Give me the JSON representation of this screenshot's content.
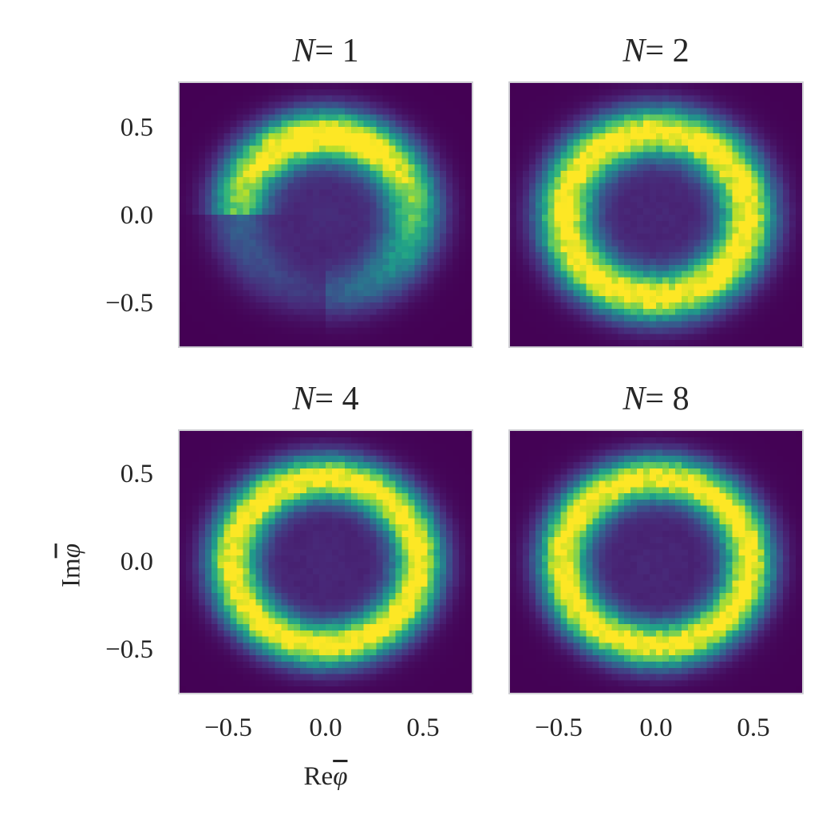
{
  "chart_data": [
    {
      "type": "heatmap",
      "title": "N = 1",
      "title_var": "N",
      "title_val": "1",
      "xlabel": "",
      "ylabel": "",
      "xlim": [
        -0.75,
        0.75
      ],
      "ylim": [
        -0.75,
        0.75
      ],
      "xticks": [
        "−0.5",
        "0.0",
        "0.5"
      ],
      "yticks": [
        "0.5",
        "0.0",
        "−0.5"
      ],
      "colormap": "viridis",
      "shape": "arc (crescent) of radius ~0.45 centered at origin, brightest at top (~0.45 Im), fading toward lower-left; gap in lower-left quadrant",
      "ring_radius": 0.45,
      "ring_width": 0.1,
      "arc_start_deg": -100,
      "arc_end_deg": 200,
      "peak_angle_deg": 90
    },
    {
      "type": "heatmap",
      "title": "N = 2",
      "title_var": "N",
      "title_val": "2",
      "xlim": [
        -0.75,
        0.75
      ],
      "ylim": [
        -0.75,
        0.75
      ],
      "colormap": "viridis",
      "shape": "full ring, radius ~0.47",
      "ring_radius": 0.47,
      "ring_width": 0.1
    },
    {
      "type": "heatmap",
      "title": "N = 4",
      "title_var": "N",
      "title_val": "4",
      "xlim": [
        -0.75,
        0.75
      ],
      "ylim": [
        -0.75,
        0.75
      ],
      "xticks": [
        "−0.5",
        "0.0",
        "0.5"
      ],
      "yticks": [
        "0.5",
        "0.0",
        "−0.5"
      ],
      "xlabel": "Reφ̄",
      "ylabel": "Imφ̄",
      "colormap": "viridis",
      "shape": "full ring, radius ~0.48",
      "ring_radius": 0.48,
      "ring_width": 0.09
    },
    {
      "type": "heatmap",
      "title": "N = 8",
      "title_var": "N",
      "title_val": "8",
      "xlim": [
        -0.75,
        0.75
      ],
      "ylim": [
        -0.75,
        0.75
      ],
      "xticks": [
        "−0.5",
        "0.0",
        "0.5"
      ],
      "colormap": "viridis",
      "shape": "full ring, radius ~0.48",
      "ring_radius": 0.48,
      "ring_width": 0.09
    }
  ],
  "labels": {
    "titles": [
      "N",
      "N",
      "N",
      "N"
    ],
    "title_vals": [
      "= 1",
      "= 2",
      "= 4",
      "= 8"
    ],
    "yticks": [
      "0.5",
      "0.0",
      "−0.5"
    ],
    "xticks": [
      "−0.5",
      "0.0",
      "0.5"
    ],
    "xlabel_prefix": "Re",
    "ylabel_prefix": "Im",
    "phi": "φ"
  },
  "colors": {
    "background": "#440154",
    "frame": "#cfcfd4",
    "text": "#262626"
  }
}
